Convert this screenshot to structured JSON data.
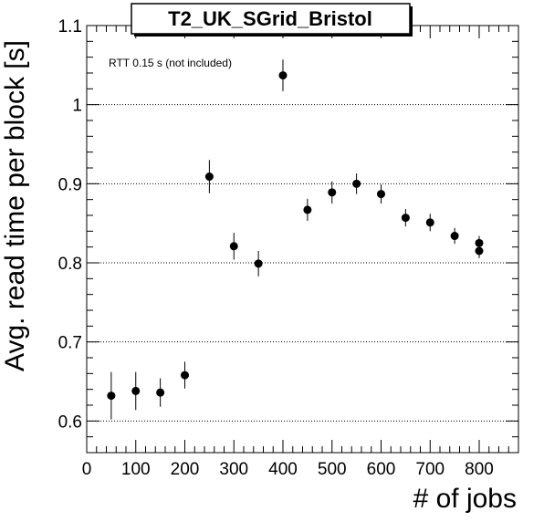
{
  "chart_data": {
    "type": "scatter",
    "title": "T2_UK_SGrid_Bristol",
    "xlabel": "# of jobs",
    "ylabel": "Avg. read time per block [s]",
    "annotation": "RTT 0.15 s (not included)",
    "xlim": [
      0,
      880
    ],
    "ylim": [
      0.56,
      1.1
    ],
    "x_ticks": [
      0,
      100,
      200,
      300,
      400,
      500,
      600,
      700,
      800
    ],
    "y_ticks": [
      0.6,
      0.7,
      0.8,
      0.9,
      1.0,
      1.1
    ],
    "x_tick_labels": [
      "0",
      "100",
      "200",
      "300",
      "400",
      "500",
      "600",
      "700",
      "800"
    ],
    "y_tick_labels": [
      "0.6",
      "0.7",
      "0.8",
      "0.9",
      "1",
      "1.1"
    ],
    "grid": "horizontal-dotted",
    "points": [
      {
        "x": 50,
        "y": 0.632,
        "err": 0.03
      },
      {
        "x": 100,
        "y": 0.638,
        "err": 0.024
      },
      {
        "x": 150,
        "y": 0.636,
        "err": 0.018
      },
      {
        "x": 200,
        "y": 0.658,
        "err": 0.017
      },
      {
        "x": 250,
        "y": 0.909,
        "err": 0.021
      },
      {
        "x": 300,
        "y": 0.821,
        "err": 0.017
      },
      {
        "x": 350,
        "y": 0.799,
        "err": 0.016
      },
      {
        "x": 400,
        "y": 1.037,
        "err": 0.02
      },
      {
        "x": 450,
        "y": 0.867,
        "err": 0.014
      },
      {
        "x": 500,
        "y": 0.889,
        "err": 0.014
      },
      {
        "x": 550,
        "y": 0.9,
        "err": 0.013
      },
      {
        "x": 600,
        "y": 0.887,
        "err": 0.012
      },
      {
        "x": 650,
        "y": 0.857,
        "err": 0.011
      },
      {
        "x": 700,
        "y": 0.851,
        "err": 0.011
      },
      {
        "x": 750,
        "y": 0.834,
        "err": 0.01
      },
      {
        "x": 800,
        "y": 0.825,
        "err": 0.009
      },
      {
        "x": 800,
        "y": 0.815,
        "err": 0.009
      }
    ]
  }
}
